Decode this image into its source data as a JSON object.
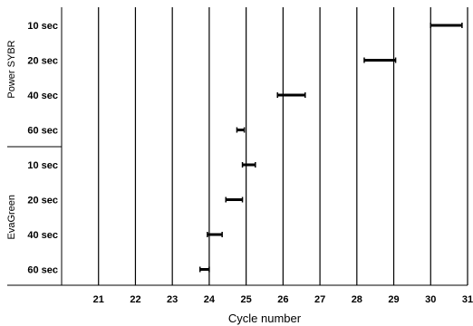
{
  "chart_data": {
    "type": "range",
    "xlabel": "Cycle number",
    "x_ticks": [
      21,
      22,
      23,
      24,
      25,
      26,
      27,
      28,
      29,
      30,
      31
    ],
    "xlim": [
      20,
      31
    ],
    "grid": "vertical lines at each integer cycle",
    "groups": [
      {
        "name": "Power SYBR",
        "rows": [
          {
            "label": "10 sec",
            "min": 30.0,
            "max": 30.85
          },
          {
            "label": "20 sec",
            "min": 28.2,
            "max": 29.05
          },
          {
            "label": "40 sec",
            "min": 25.85,
            "max": 26.6
          }
        ]
      },
      {
        "name": "",
        "rows": [
          {
            "label": "60 sec",
            "min": 24.75,
            "max": 24.95
          }
        ]
      },
      {
        "name": "EvaGreen",
        "rows": [
          {
            "label": "10 sec",
            "min": 24.9,
            "max": 25.25
          },
          {
            "label": "20 sec",
            "min": 24.45,
            "max": 24.9
          },
          {
            "label": "40 sec",
            "min": 23.95,
            "max": 24.35
          },
          {
            "label": "60 sec",
            "min": 23.75,
            "max": 24.0
          }
        ]
      }
    ]
  }
}
